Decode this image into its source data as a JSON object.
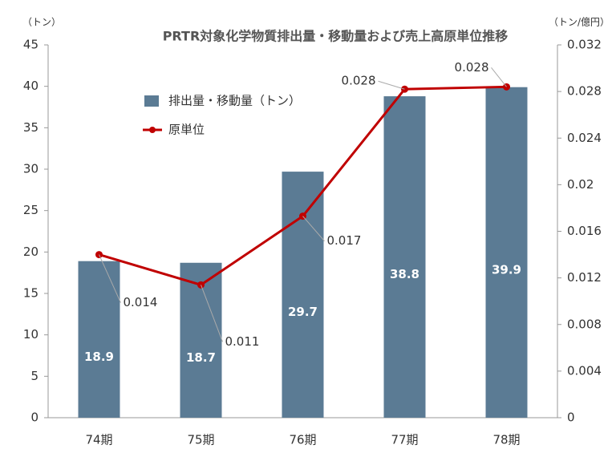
{
  "chart_data": {
    "type": "combo",
    "title": "PRTR対象化学物質排出量・移動量および売上高原単位推移",
    "y_label": "（トン）",
    "y2_label": "（トン/億円）",
    "categories": [
      "74期",
      "75期",
      "76期",
      "77期",
      "78期"
    ],
    "series": [
      {
        "name": "排出量・移動量（トン）",
        "type": "bar",
        "color": "#5b7b94",
        "values": [
          18.9,
          18.7,
          29.7,
          38.8,
          39.9
        ]
      },
      {
        "name": "原単位",
        "type": "line",
        "axis": "y2",
        "color": "#c00000",
        "values": [
          0.014,
          0.0114,
          0.0173,
          0.0282,
          0.0284
        ],
        "value_labels": [
          "0.014",
          "0.011",
          "0.017",
          "0.028",
          "0.028"
        ]
      }
    ],
    "ylim": [
      0,
      45
    ],
    "yticks": [
      0,
      5,
      10,
      15,
      20,
      25,
      30,
      35,
      40,
      45
    ],
    "y2lim": [
      0,
      0.032
    ],
    "y2ticks": [
      0,
      0.004,
      0.008,
      0.012,
      0.016,
      0.02,
      0.024,
      0.028,
      0.032
    ]
  }
}
